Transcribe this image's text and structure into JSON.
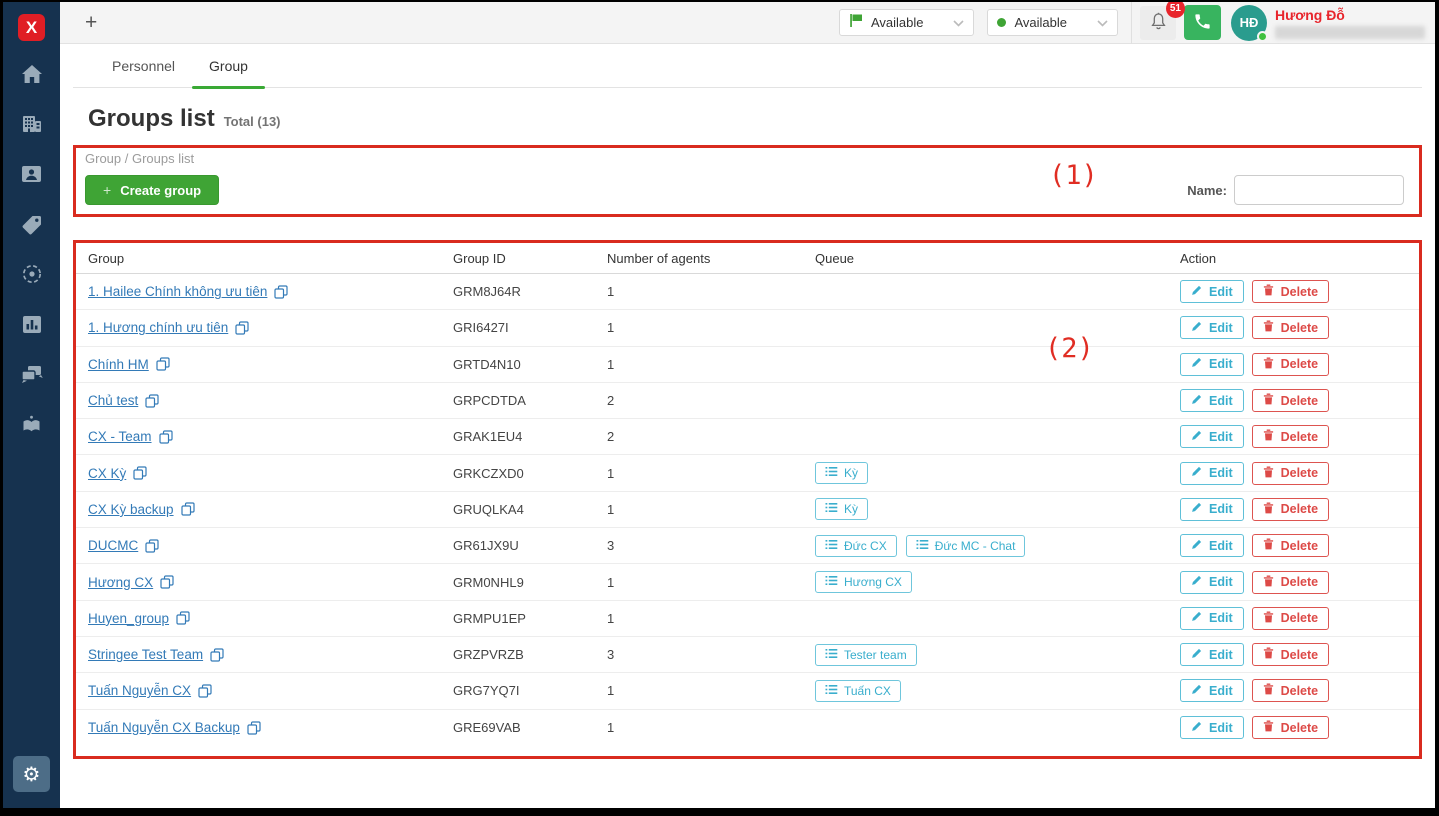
{
  "colors": {
    "sidebar": "#16324f",
    "brand_red": "#e01e25",
    "green": "#3fa435",
    "annotation_red": "#d92b1f",
    "link_blue": "#337ab7",
    "cyan": "#39aecd",
    "delete_red": "#dd4a47"
  },
  "window": {
    "new_tab": "+"
  },
  "topbar": {
    "status_dropdown_flag": {
      "label": "Available"
    },
    "status_dropdown_dot": {
      "label": "Available"
    },
    "notification_badge": "51",
    "user": {
      "initials": "HĐ",
      "name": "Hương Đỗ"
    }
  },
  "tabs": {
    "personnel": "Personnel",
    "group": "Group"
  },
  "page": {
    "title": "Groups list",
    "total": "Total (13)",
    "breadcrumb": "Group / Groups list",
    "create_button": "Create group",
    "create_plus": "+",
    "name_filter_label": "Name:",
    "name_filter_value": ""
  },
  "annotations": {
    "box1": "(1)",
    "box2": "(2)"
  },
  "table": {
    "columns": [
      "Group",
      "Group ID",
      "Number of agents",
      "Queue",
      "Action"
    ],
    "edit_label": "Edit",
    "delete_label": "Delete",
    "rows": [
      {
        "name": "1. Hailee Chính không ưu tiên",
        "id": "GRM8J64R",
        "agents": "1",
        "queues": []
      },
      {
        "name": "1. Hương chính ưu tiên",
        "id": "GRI6427I",
        "agents": "1",
        "queues": []
      },
      {
        "name": "Chính HM",
        "id": "GRTD4N10",
        "agents": "1",
        "queues": []
      },
      {
        "name": "Chủ test",
        "id": "GRPCDTDA",
        "agents": "2",
        "queues": []
      },
      {
        "name": "CX - Team",
        "id": "GRAK1EU4",
        "agents": "2",
        "queues": []
      },
      {
        "name": "CX Kỳ",
        "id": "GRKCZXD0",
        "agents": "1",
        "queues": [
          "Kỳ"
        ]
      },
      {
        "name": "CX Kỳ backup",
        "id": "GRUQLKA4",
        "agents": "1",
        "queues": [
          "Kỳ"
        ]
      },
      {
        "name": "DUCMC",
        "id": "GR61JX9U",
        "agents": "3",
        "queues": [
          "Đức CX",
          "Đức MC - Chat"
        ]
      },
      {
        "name": "Hương CX",
        "id": "GRM0NHL9",
        "agents": "1",
        "queues": [
          "Hương CX"
        ]
      },
      {
        "name": "Huyen_group",
        "id": "GRMPU1EP",
        "agents": "1",
        "queues": []
      },
      {
        "name": "Stringee Test Team",
        "id": "GRZPVRZB",
        "agents": "3",
        "queues": [
          "Tester team"
        ]
      },
      {
        "name": "Tuấn Nguyễn CX",
        "id": "GRG7YQ7I",
        "agents": "1",
        "queues": [
          "Tuấn CX"
        ]
      },
      {
        "name": "Tuấn Nguyễn CX Backup",
        "id": "GRE69VAB",
        "agents": "1",
        "queues": []
      }
    ]
  }
}
